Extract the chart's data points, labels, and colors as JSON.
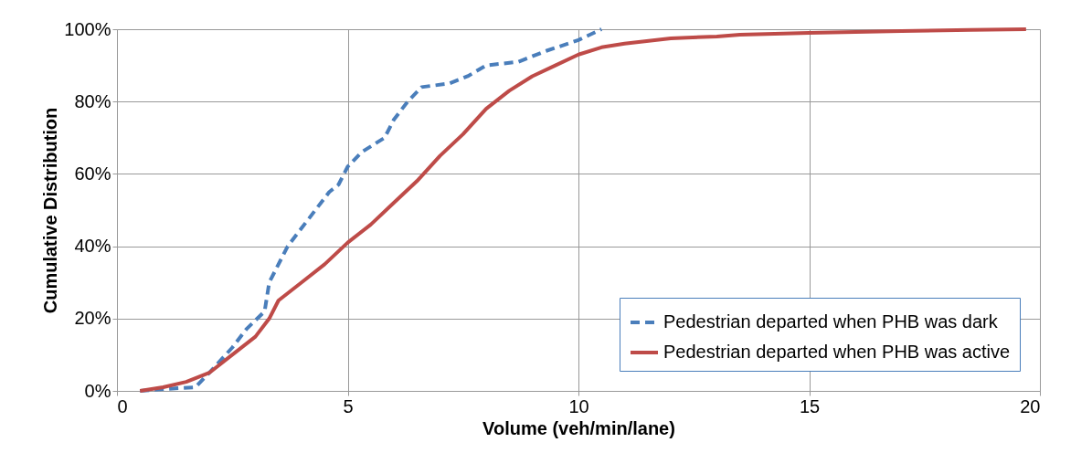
{
  "chart_data": {
    "type": "line",
    "xlabel": "Volume (veh/min/lane)",
    "ylabel": "Cumulative Distribution",
    "xlim": [
      0,
      20
    ],
    "xticks": [
      0,
      5,
      10,
      15,
      20
    ],
    "ylim": [
      0,
      100
    ],
    "yticks": [
      {
        "value": 0,
        "label": "0%"
      },
      {
        "value": 20,
        "label": "20%"
      },
      {
        "value": 40,
        "label": "40%"
      },
      {
        "value": 60,
        "label": "60%"
      },
      {
        "value": 80,
        "label": "80%"
      },
      {
        "value": 100,
        "label": "100%"
      }
    ],
    "grid": true,
    "legend": "bottom right",
    "marker": "none",
    "series": [
      {
        "name": "Pedestrian departed when PHB was dark",
        "color": "#4a7ebb",
        "line_style": "dashed",
        "x": [
          0.5,
          1.0,
          1.7,
          2.0,
          2.5,
          2.8,
          3.2,
          3.3,
          3.5,
          3.7,
          4.0,
          4.3,
          4.6,
          4.8,
          5.0,
          5.3,
          5.8,
          6.0,
          6.3,
          6.6,
          7.2,
          7.6,
          8.0,
          8.7,
          9.3,
          10.0,
          10.5
        ],
        "values": [
          0,
          0.5,
          1,
          5,
          12,
          17,
          22,
          30,
          35,
          40,
          45,
          50,
          55,
          57,
          62,
          66,
          70,
          75,
          80,
          84,
          85,
          87,
          90,
          91,
          94,
          97,
          100
        ]
      },
      {
        "name": "Pedestrian departed when PHB was active",
        "color": "#be4b48",
        "line_style": "solid",
        "x": [
          0.5,
          1,
          1.5,
          2,
          2.5,
          3,
          3.3,
          3.5,
          4,
          4.5,
          5,
          5.5,
          6,
          6.5,
          7,
          7.5,
          8,
          8.5,
          9,
          9.5,
          10,
          10.5,
          11,
          12,
          13,
          13.5,
          15,
          17,
          18.5,
          19.7
        ],
        "values": [
          0,
          1,
          2.5,
          5,
          10,
          15,
          20,
          25,
          30,
          35,
          41,
          46,
          52,
          58,
          65,
          71,
          78,
          83,
          87,
          90,
          93,
          95,
          96,
          97.5,
          98,
          98.5,
          99,
          99.5,
          99.8,
          100
        ]
      }
    ]
  }
}
